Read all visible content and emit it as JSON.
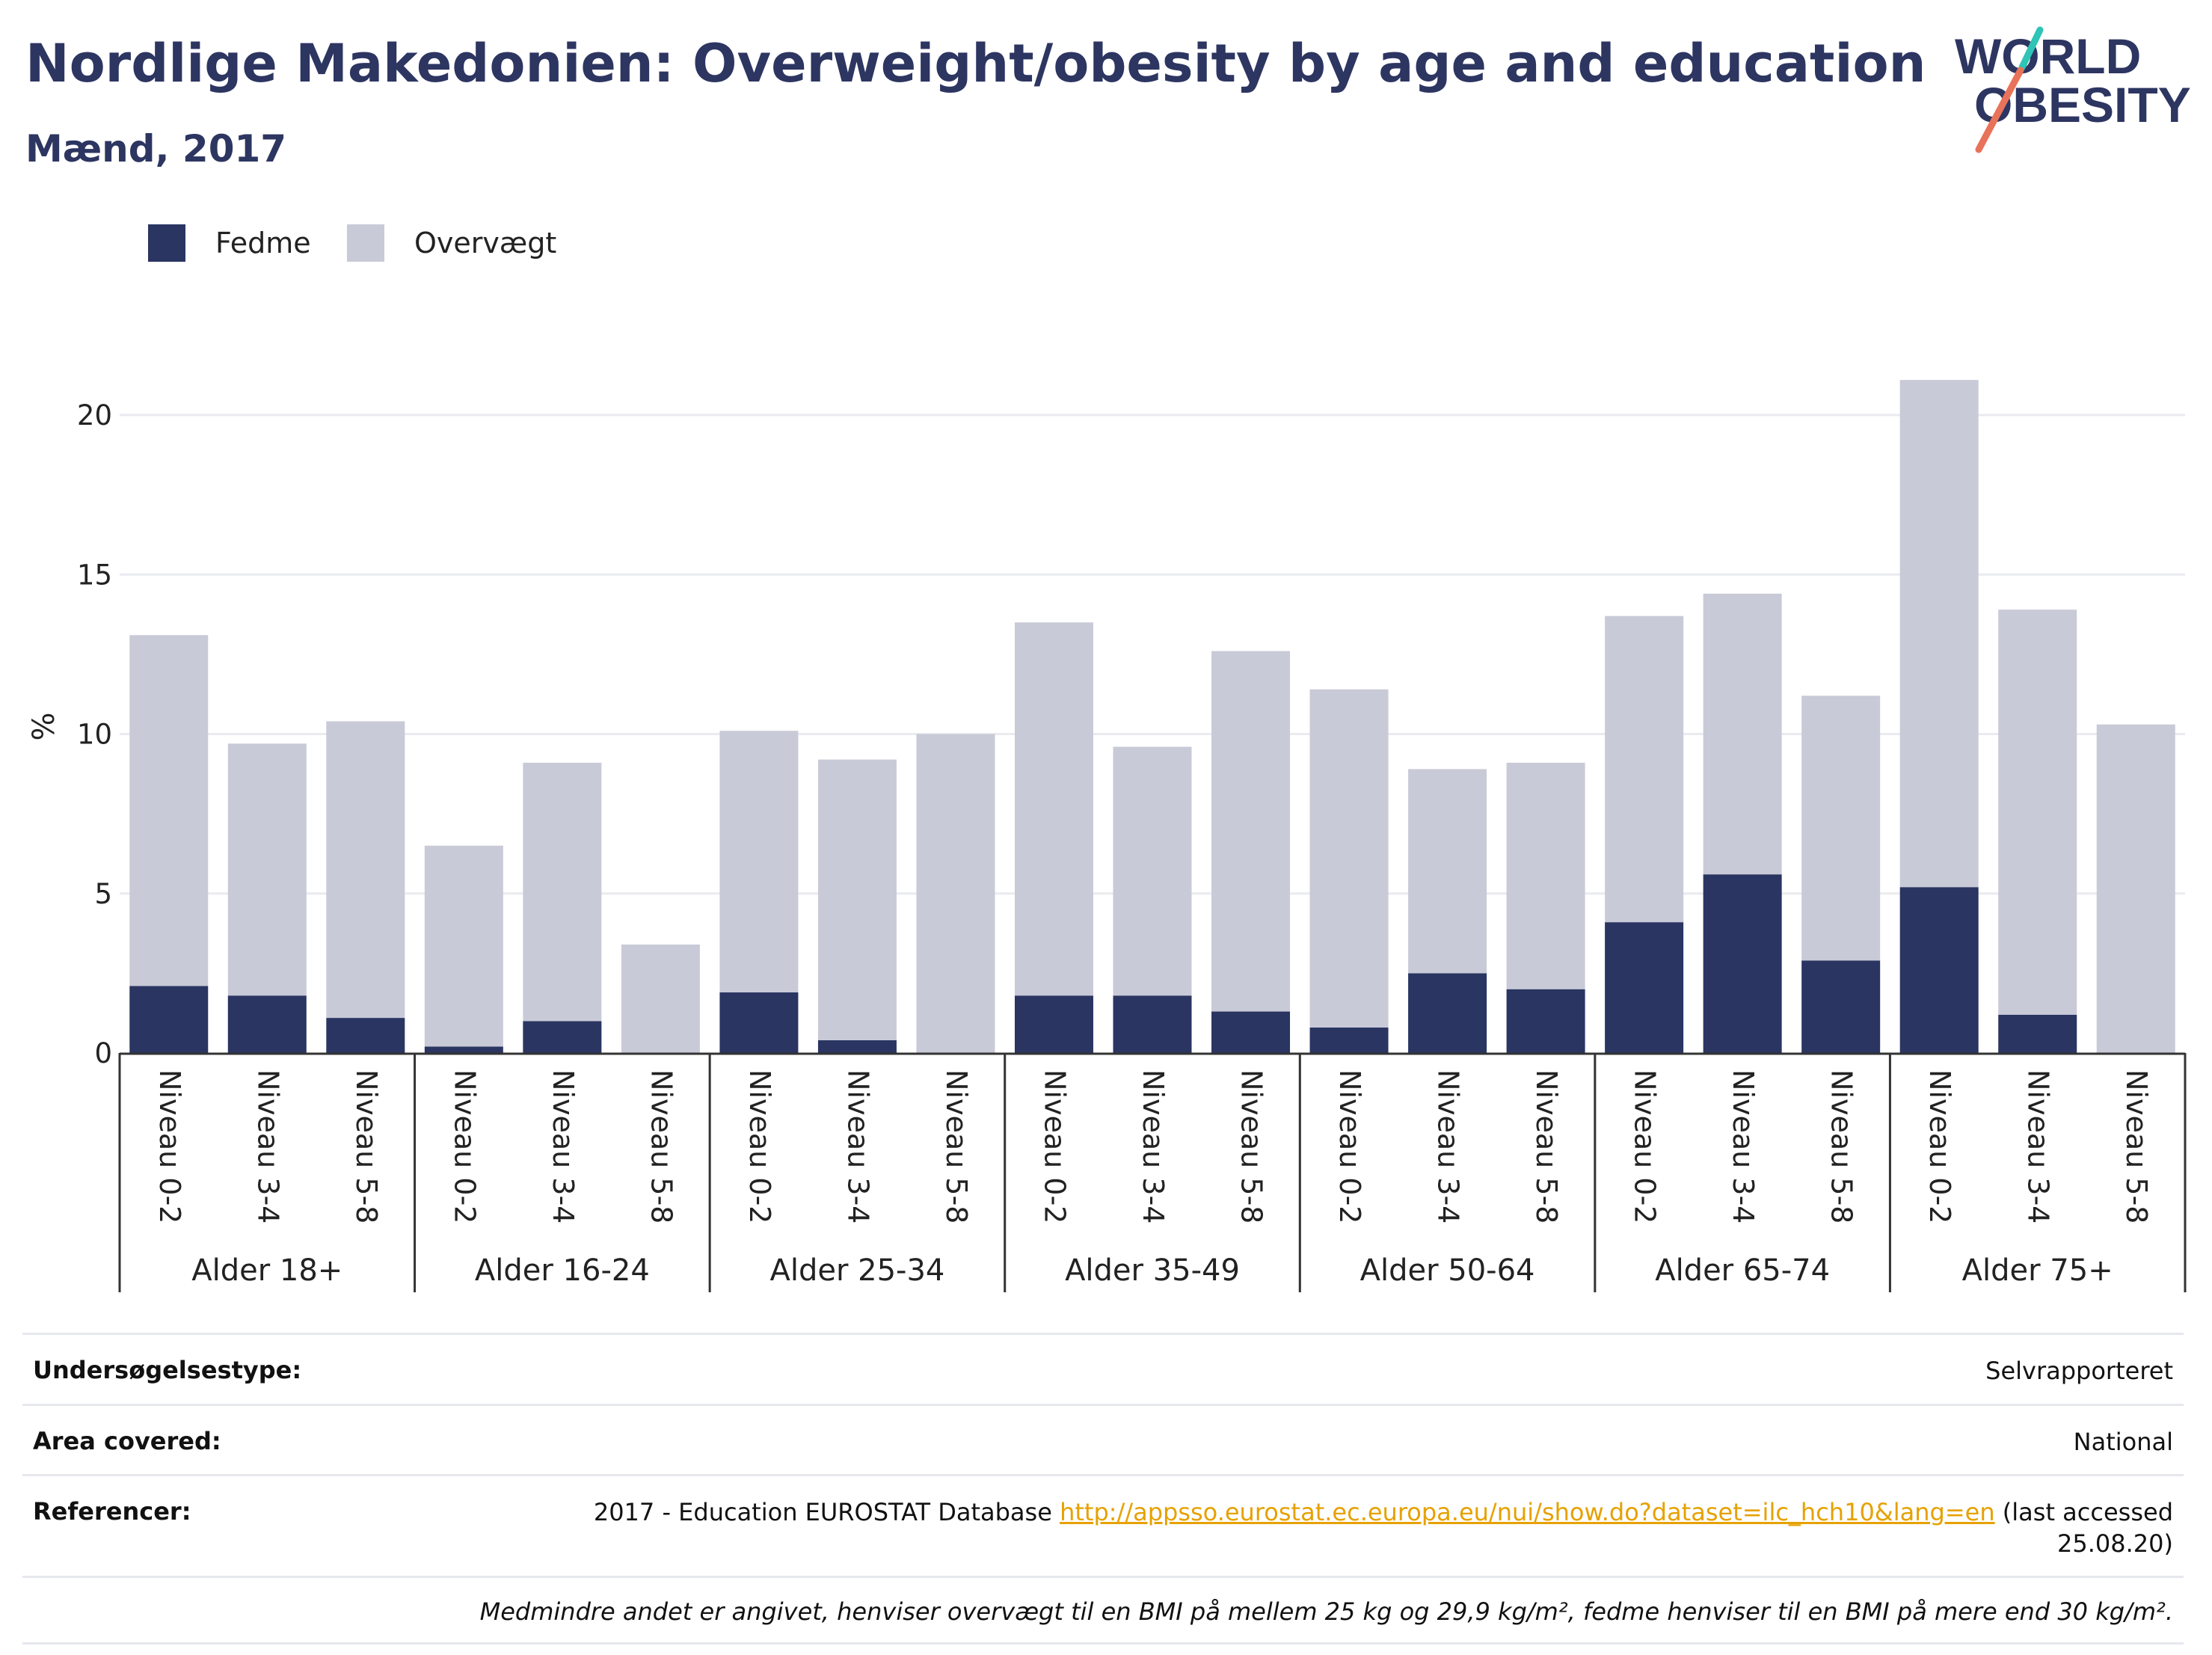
{
  "title": "Nordlige Makedonien: Overweight/obesity by age and education",
  "subtitle": "Mænd, 2017",
  "logo": {
    "line1": "WORLD",
    "line2": "OBESITY"
  },
  "colors": {
    "obesity": "#2a3562",
    "overweight": "#c9cad7",
    "title": "#2d3561",
    "link": "#e6a100"
  },
  "chart_data": {
    "type": "bar",
    "stacked": true,
    "ylabel": "%",
    "ylim": [
      0,
      22
    ],
    "yticks": [
      0,
      5,
      10,
      15,
      20
    ],
    "grid": true,
    "legend_position": "top-left",
    "groups": [
      {
        "label": "Alder 18+",
        "categories": [
          "Niveau 0-2",
          "Niveau 3-4",
          "Niveau 5-8"
        ]
      },
      {
        "label": "Alder 16-24",
        "categories": [
          "Niveau 0-2",
          "Niveau 3-4",
          "Niveau 5-8"
        ]
      },
      {
        "label": "Alder 25-34",
        "categories": [
          "Niveau 0-2",
          "Niveau 3-4",
          "Niveau 5-8"
        ]
      },
      {
        "label": "Alder 35-49",
        "categories": [
          "Niveau 0-2",
          "Niveau 3-4",
          "Niveau 5-8"
        ]
      },
      {
        "label": "Alder 50-64",
        "categories": [
          "Niveau 0-2",
          "Niveau 3-4",
          "Niveau 5-8"
        ]
      },
      {
        "label": "Alder 65-74",
        "categories": [
          "Niveau 0-2",
          "Niveau 3-4",
          "Niveau 5-8"
        ]
      },
      {
        "label": "Alder 75+",
        "categories": [
          "Niveau 0-2",
          "Niveau 3-4",
          "Niveau 5-8"
        ]
      }
    ],
    "series": [
      {
        "name": "Fedme",
        "color": "#2a3562",
        "values": [
          2.1,
          1.8,
          1.1,
          0.2,
          1.0,
          0.0,
          1.9,
          0.4,
          0.0,
          1.8,
          1.8,
          1.3,
          0.8,
          2.5,
          2.0,
          4.1,
          5.6,
          2.9,
          5.2,
          1.2,
          0.0
        ]
      },
      {
        "name": "Overvægt",
        "color": "#c9cad7",
        "values": [
          11.0,
          7.9,
          9.3,
          6.3,
          8.1,
          3.4,
          8.2,
          8.8,
          10.0,
          11.7,
          7.8,
          11.3,
          10.6,
          6.4,
          7.1,
          9.6,
          8.8,
          8.3,
          15.9,
          12.7,
          10.3
        ]
      }
    ]
  },
  "info": [
    {
      "label": "Undersøgelsestype:",
      "value": "Selvrapporteret"
    },
    {
      "label": "Area covered:",
      "value": "National"
    }
  ],
  "references": {
    "label": "Referencer:",
    "prefix": "2017 - Education EUROSTAT Database ",
    "link": "http://appsso.eurostat.ec.europa.eu/nui/show.do?dataset=ilc_hch10&lang=en",
    "suffix": " (last accessed 25.08.20)"
  },
  "note": "Medmindre andet er angivet, henviser overvægt til en BMI på mellem 25 kg og 29,9 kg/m², fedme henviser til en BMI på mere end 30 kg/m²."
}
